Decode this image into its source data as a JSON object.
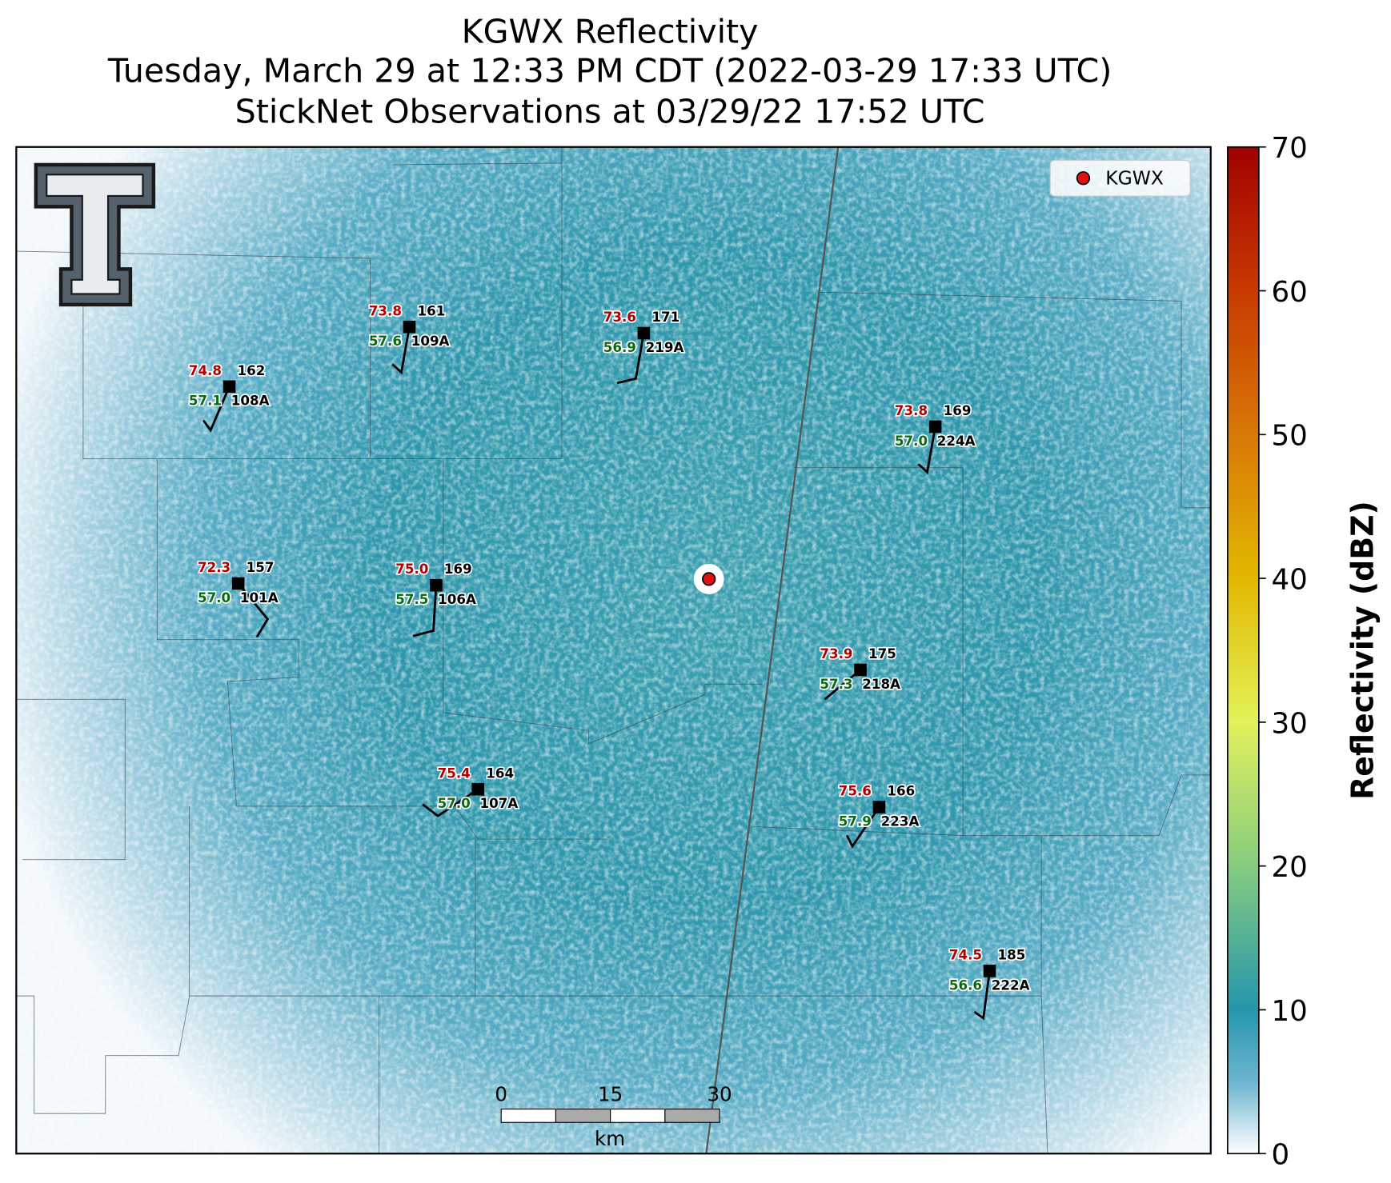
{
  "title": [
    "KGWX Reflectivity",
    "Tuesday, March 29 at 12:33 PM CDT (2022-03-29 17:33 UTC)",
    "StickNet Observations at 03/29/22 17:52 UTC"
  ],
  "colorbar": {
    "label": "Reflectivity (dBZ)",
    "lim": [
      0,
      70
    ],
    "ticks": [
      0,
      10,
      20,
      30,
      40,
      50,
      60,
      70
    ]
  },
  "legend": {
    "label": "KGWX"
  },
  "scale_bar": {
    "ticks": [
      0,
      15,
      30
    ],
    "unit": "km"
  },
  "stations": [
    {
      "id": "109A",
      "pressure": 161,
      "temperature": 73.8,
      "dewpoint": 57.6
    },
    {
      "id": "219A",
      "pressure": 171,
      "temperature": 73.6,
      "dewpoint": 56.9
    },
    {
      "id": "108A",
      "pressure": 162,
      "temperature": 74.8,
      "dewpoint": 57.1
    },
    {
      "id": "224A",
      "pressure": 169,
      "temperature": 73.8,
      "dewpoint": {
        "value": 57.0,
        "label": "57.0"
      }
    },
    {
      "id": "101A",
      "pressure": 157,
      "temperature": 72.3,
      "dewpoint": {
        "value": 57.0,
        "label": "57.0"
      }
    },
    {
      "id": "106A",
      "pressure": 169,
      "temperature": {
        "value": 75.0,
        "label": "75.0"
      },
      "dewpoint": 57.5
    },
    {
      "id": "218A",
      "pressure": 175,
      "temperature": 73.9,
      "dewpoint": 57.3
    },
    {
      "id": "107A",
      "pressure": 164,
      "temperature": 75.4,
      "dewpoint": {
        "value": 57.0,
        "label": "57.0"
      }
    },
    {
      "id": "223A",
      "pressure": 166,
      "temperature": 75.6,
      "dewpoint": 57.9
    },
    {
      "id": "222A",
      "pressure": 185,
      "temperature": 74.5,
      "dewpoint": 56.6
    }
  ]
}
